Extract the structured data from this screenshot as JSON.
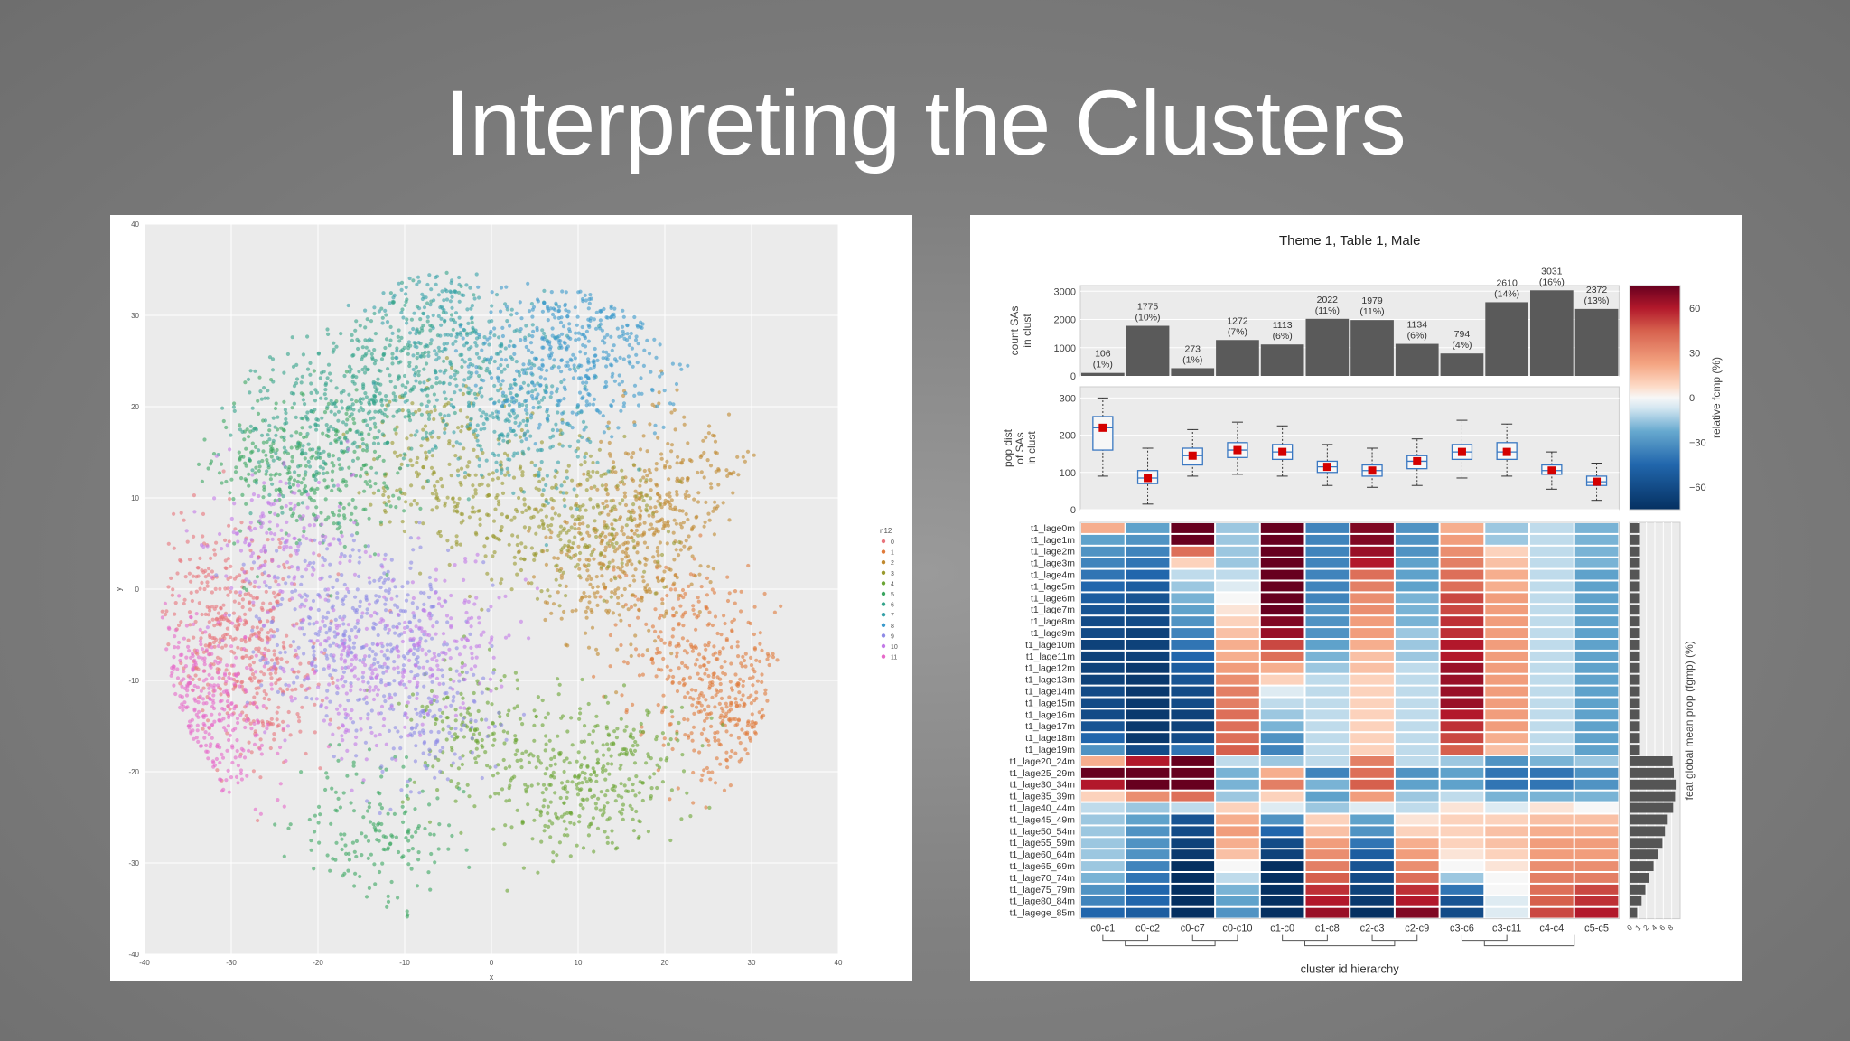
{
  "slide_title": "Interpreting the Clusters",
  "chart_data": [
    {
      "type": "scatter",
      "title": "",
      "xlabel": "x",
      "ylabel": "y",
      "xlim": [
        -40,
        40
      ],
      "ylim": [
        -40,
        40
      ],
      "xticks": [
        "-40",
        "-30",
        "-20",
        "-10",
        "0",
        "10",
        "20",
        "30",
        "40"
      ],
      "yticks": [
        "40",
        "30",
        "20",
        "10",
        "0",
        "-10",
        "-20",
        "-30",
        "-40"
      ],
      "grid": true,
      "legend_title": "n12",
      "legend_position": "right",
      "series": [
        {
          "name": "0",
          "color": "#e8747c",
          "centers": [
            [
              -28,
              -4
            ],
            [
              -32,
              0
            ],
            [
              -27,
              -12
            ]
          ]
        },
        {
          "name": "1",
          "color": "#e07a3a",
          "centers": [
            [
              26,
              -12
            ],
            [
              22,
              -5
            ],
            [
              30,
              -14
            ]
          ]
        },
        {
          "name": "2",
          "color": "#c0892e",
          "centers": [
            [
              21,
              12
            ],
            [
              13,
              2
            ],
            [
              18,
              6
            ]
          ]
        },
        {
          "name": "3",
          "color": "#9a9a2e",
          "centers": [
            [
              -6,
              14
            ],
            [
              3,
              8
            ],
            [
              12,
              8
            ]
          ]
        },
        {
          "name": "4",
          "color": "#6ba533",
          "centers": [
            [
              8,
              -22
            ],
            [
              -2,
              -16
            ],
            [
              14,
              -20
            ]
          ]
        },
        {
          "name": "5",
          "color": "#3aa660",
          "centers": [
            [
              -18,
              12
            ],
            [
              -13,
              -27
            ],
            [
              -25,
              14
            ]
          ]
        },
        {
          "name": "6",
          "color": "#33a48b",
          "centers": [
            [
              -14,
              22
            ],
            [
              -22,
              18
            ],
            [
              -10,
              26
            ]
          ]
        },
        {
          "name": "7",
          "color": "#35a1a8",
          "centers": [
            [
              0,
              24
            ],
            [
              -6,
              30
            ],
            [
              4,
              18
            ]
          ]
        },
        {
          "name": "8",
          "color": "#3a9acc",
          "centers": [
            [
              6,
              24
            ],
            [
              14,
              25
            ],
            [
              10,
              32
            ]
          ]
        },
        {
          "name": "9",
          "color": "#8e8ae6",
          "centers": [
            [
              -12,
              -2
            ],
            [
              -8,
              -14
            ],
            [
              -20,
              -4
            ]
          ]
        },
        {
          "name": "10",
          "color": "#c37ae8",
          "centers": [
            [
              -16,
              -10
            ],
            [
              -6,
              -6
            ],
            [
              -24,
              6
            ]
          ]
        },
        {
          "name": "11",
          "color": "#e669c9",
          "centers": [
            [
              -36,
              -12
            ],
            [
              -31,
              -16
            ],
            [
              -37,
              -10
            ]
          ]
        }
      ]
    },
    {
      "type": "bar",
      "title": "Theme 1, Table 1, Male",
      "ylabel": "count SAs in clust",
      "yticks": [
        "0",
        "1000",
        "2000",
        "3000"
      ],
      "ylim": [
        0,
        3200
      ],
      "categories": [
        "c0-c1",
        "c0-c2",
        "c0-c7",
        "c0-c10",
        "c1-c0",
        "c1-c8",
        "c2-c3",
        "c2-c9",
        "c3-c6",
        "c3-c11",
        "c4-c4",
        "c5-c5"
      ],
      "values": [
        106,
        1775,
        273,
        1272,
        1113,
        2022,
        1979,
        1134,
        794,
        2610,
        3031,
        2372
      ],
      "percent_labels": [
        "(1%)",
        "(10%)",
        "(1%)",
        "(7%)",
        "(6%)",
        "(11%)",
        "(11%)",
        "(6%)",
        "(4%)",
        "(14%)",
        "(16%)",
        "(13%)"
      ],
      "value_labels": [
        "106",
        "1775",
        "273",
        "1272",
        "1113",
        "2022",
        "1979",
        "1134",
        "794",
        "2610",
        "3031",
        "2372"
      ],
      "bar_color": "#5a5a5a"
    },
    {
      "type": "box",
      "ylabel": "pop dist of SAs in clust",
      "yticks": [
        "0",
        "100",
        "200",
        "300"
      ],
      "ylim": [
        0,
        330
      ],
      "boxes": [
        {
          "whislo": 90,
          "q1": 160,
          "med": 220,
          "q3": 250,
          "whishi": 300,
          "mean": 220
        },
        {
          "whislo": 15,
          "q1": 70,
          "med": 85,
          "q3": 105,
          "whishi": 165,
          "mean": 85
        },
        {
          "whislo": 90,
          "q1": 120,
          "med": 145,
          "q3": 165,
          "whishi": 215,
          "mean": 145
        },
        {
          "whislo": 95,
          "q1": 140,
          "med": 160,
          "q3": 180,
          "whishi": 235,
          "mean": 160
        },
        {
          "whislo": 90,
          "q1": 135,
          "med": 155,
          "q3": 175,
          "whishi": 225,
          "mean": 155
        },
        {
          "whislo": 65,
          "q1": 100,
          "med": 115,
          "q3": 130,
          "whishi": 175,
          "mean": 115
        },
        {
          "whislo": 60,
          "q1": 90,
          "med": 105,
          "q3": 120,
          "whishi": 165,
          "mean": 105
        },
        {
          "whislo": 65,
          "q1": 110,
          "med": 130,
          "q3": 145,
          "whishi": 190,
          "mean": 130
        },
        {
          "whislo": 85,
          "q1": 135,
          "med": 155,
          "q3": 175,
          "whishi": 240,
          "mean": 155
        },
        {
          "whislo": 90,
          "q1": 135,
          "med": 155,
          "q3": 180,
          "whishi": 230,
          "mean": 155
        },
        {
          "whislo": 55,
          "q1": 95,
          "med": 105,
          "q3": 120,
          "whishi": 155,
          "mean": 105
        },
        {
          "whislo": 25,
          "q1": 65,
          "med": 75,
          "q3": 90,
          "whishi": 125,
          "mean": 75
        }
      ]
    },
    {
      "type": "heatmap",
      "xlabel": "cluster id hierarchy",
      "colorbar_label": "relative fcmp (%)",
      "colorbar_ticks": [
        "60",
        "30",
        "0",
        "−30",
        "−60"
      ],
      "colorbar_range": [
        -75,
        75
      ],
      "rows": [
        "t1_lage0m",
        "t1_lage1m",
        "t1_lage2m",
        "t1_lage3m",
        "t1_lage4m",
        "t1_lage5m",
        "t1_lage6m",
        "t1_lage7m",
        "t1_lage8m",
        "t1_lage9m",
        "t1_lage10m",
        "t1_lage11m",
        "t1_lage12m",
        "t1_lage13m",
        "t1_lage14m",
        "t1_lage15m",
        "t1_lage16m",
        "t1_lage17m",
        "t1_lage18m",
        "t1_lage19m",
        "t1_lage20_24m",
        "t1_lage25_29m",
        "t1_lage30_34m",
        "t1_lage35_39m",
        "t1_lage40_44m",
        "t1_lage45_49m",
        "t1_lage50_54m",
        "t1_lage55_59m",
        "t1_lage60_64m",
        "t1_lage65_69m",
        "t1_lage70_74m",
        "t1_lage75_79m",
        "t1_lage80_84m",
        "t1_lagege_85m"
      ],
      "columns": [
        "c0-c1",
        "c0-c2",
        "c0-c7",
        "c0-c10",
        "c1-c0",
        "c1-c8",
        "c2-c3",
        "c2-c9",
        "c3-c6",
        "c3-c11",
        "c4-c4",
        "c5-c5"
      ],
      "values": [
        [
          20,
          -25,
          75,
          -15,
          80,
          -35,
          70,
          -30,
          20,
          -15,
          -10,
          -20
        ],
        [
          -25,
          -30,
          75,
          -15,
          80,
          -35,
          70,
          -30,
          25,
          -15,
          -10,
          -20
        ],
        [
          -30,
          -35,
          40,
          -15,
          80,
          -35,
          65,
          -30,
          30,
          10,
          -10,
          -20
        ],
        [
          -35,
          -40,
          10,
          -15,
          80,
          -35,
          60,
          -25,
          35,
          15,
          -10,
          -20
        ],
        [
          -40,
          -45,
          -10,
          -10,
          80,
          -35,
          40,
          -25,
          40,
          20,
          -10,
          -25
        ],
        [
          -45,
          -50,
          -15,
          -5,
          80,
          -35,
          35,
          -25,
          40,
          20,
          -10,
          -25
        ],
        [
          -50,
          -55,
          -20,
          0,
          80,
          -35,
          30,
          -20,
          50,
          25,
          -10,
          -25
        ],
        [
          -55,
          -60,
          -25,
          5,
          75,
          -30,
          30,
          -20,
          50,
          25,
          -10,
          -25
        ],
        [
          -60,
          -60,
          -30,
          10,
          70,
          -30,
          25,
          -20,
          55,
          25,
          -10,
          -25
        ],
        [
          -60,
          -65,
          -35,
          15,
          65,
          -30,
          25,
          -15,
          55,
          25,
          -10,
          -25
        ],
        [
          -65,
          -65,
          -40,
          20,
          50,
          -25,
          20,
          -15,
          60,
          25,
          -10,
          -25
        ],
        [
          -65,
          -65,
          -45,
          20,
          40,
          -20,
          15,
          -15,
          60,
          25,
          -10,
          -25
        ],
        [
          -65,
          -70,
          -50,
          25,
          20,
          -15,
          15,
          -10,
          65,
          25,
          -10,
          -25
        ],
        [
          -65,
          -70,
          -55,
          30,
          10,
          -10,
          10,
          -10,
          65,
          25,
          -10,
          -25
        ],
        [
          -60,
          -70,
          -60,
          35,
          -5,
          -10,
          10,
          -10,
          65,
          25,
          -10,
          -25
        ],
        [
          -60,
          -70,
          -60,
          35,
          -10,
          -10,
          10,
          -10,
          65,
          25,
          -10,
          -25
        ],
        [
          -60,
          -70,
          -65,
          40,
          -15,
          -10,
          10,
          -10,
          60,
          25,
          -10,
          -25
        ],
        [
          -55,
          -70,
          -65,
          40,
          -20,
          -10,
          10,
          -10,
          55,
          25,
          -10,
          -25
        ],
        [
          -45,
          -70,
          -60,
          40,
          -30,
          -10,
          10,
          -10,
          50,
          20,
          -10,
          -25
        ],
        [
          -30,
          -60,
          -40,
          45,
          -35,
          -10,
          10,
          -10,
          45,
          15,
          -10,
          -25
        ],
        [
          20,
          60,
          75,
          -10,
          -15,
          -10,
          35,
          -10,
          -15,
          -30,
          -20,
          -15
        ],
        [
          75,
          80,
          80,
          -20,
          20,
          -35,
          40,
          -30,
          -25,
          -40,
          -40,
          -30
        ],
        [
          60,
          80,
          80,
          -20,
          35,
          -20,
          45,
          -25,
          -25,
          -40,
          -40,
          -30
        ],
        [
          10,
          30,
          40,
          -15,
          10,
          -25,
          25,
          -15,
          -10,
          -20,
          -20,
          -20
        ],
        [
          -10,
          -15,
          -10,
          10,
          -5,
          -15,
          -5,
          -10,
          5,
          -5,
          5,
          0
        ],
        [
          -15,
          -25,
          -55,
          20,
          -30,
          10,
          -25,
          5,
          10,
          10,
          15,
          15
        ],
        [
          -15,
          -30,
          -60,
          25,
          -45,
          15,
          -30,
          10,
          10,
          15,
          20,
          20
        ],
        [
          -15,
          -30,
          -65,
          20,
          -60,
          25,
          -40,
          20,
          10,
          15,
          25,
          25
        ],
        [
          -15,
          -30,
          -70,
          15,
          -65,
          30,
          -50,
          25,
          5,
          10,
          25,
          25
        ],
        [
          -15,
          -35,
          -75,
          0,
          -75,
          35,
          -55,
          30,
          0,
          5,
          30,
          30
        ],
        [
          -20,
          -40,
          -75,
          -10,
          -80,
          45,
          -60,
          40,
          -15,
          0,
          35,
          35
        ],
        [
          -30,
          -45,
          -75,
          -20,
          -80,
          55,
          -65,
          55,
          -40,
          0,
          40,
          50
        ],
        [
          -35,
          -45,
          -75,
          -25,
          -80,
          60,
          -70,
          60,
          -55,
          -5,
          45,
          55
        ],
        [
          -45,
          -50,
          -80,
          -30,
          -80,
          65,
          -75,
          70,
          -60,
          -5,
          50,
          60
        ]
      ]
    },
    {
      "type": "bar",
      "orientation": "horizontal",
      "xlabel": "feat global mean prop (fgmp) (%)",
      "xticks": [
        "0",
        "1",
        "2",
        "4",
        "6",
        "8"
      ],
      "values": [
        1.5,
        1.5,
        1.5,
        1.5,
        1.5,
        1.5,
        1.5,
        1.5,
        1.5,
        1.5,
        1.5,
        1.5,
        1.5,
        1.5,
        1.5,
        1.5,
        1.5,
        1.5,
        1.5,
        1.5,
        6.8,
        7.0,
        7.3,
        7.2,
        6.9,
        5.9,
        5.6,
        5.2,
        4.5,
        3.8,
        3.1,
        2.5,
        1.9,
        1.2
      ]
    }
  ]
}
